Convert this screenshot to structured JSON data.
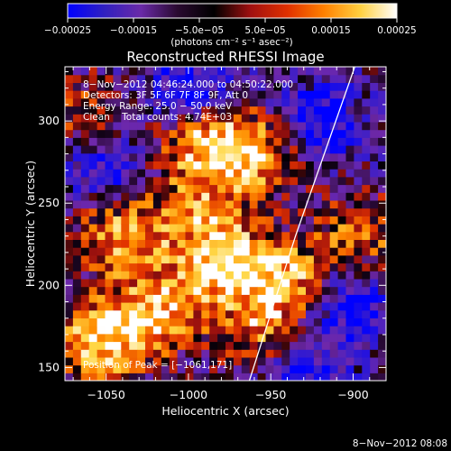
{
  "chart_data": {
    "type": "heatmap",
    "title": "Reconstructed RHESSI Image",
    "xlabel": "Heliocentric X (arcsec)",
    "ylabel": "Heliocentric Y (arcsec)",
    "xlim": [
      -1075,
      -880
    ],
    "ylim": [
      142,
      333
    ],
    "xticks": [
      -1050,
      -1000,
      -950,
      -900
    ],
    "xtick_labels": [
      "−1050",
      "−1000",
      "−950",
      "−900"
    ],
    "yticks": [
      150,
      200,
      250,
      300
    ],
    "ytick_labels": [
      "150",
      "200",
      "250",
      "300"
    ],
    "colorbar": {
      "min": -0.00025,
      "max": 0.00025,
      "tick_labels": [
        "−0.00025",
        "−0.00015",
        "−5.0e−05",
        "5.0e−05",
        "0.00015",
        "0.00025"
      ],
      "unit_label": "(photons cm⁻² s⁻¹ asec⁻²)",
      "colors": [
        "#0000ff",
        "#3020c0",
        "#6a2aa8",
        "#2a0a30",
        "#000000",
        "#a01010",
        "#e03000",
        "#ff8000",
        "#ffd040",
        "#ffffff"
      ]
    },
    "annotations": {
      "time_range": "8−Nov−2012 04:46:24.000 to 04:50:22.000",
      "detectors": "Detectors: 3F 5F 6F 7F 8F 9F, Att 0",
      "energy_range": "Energy Range: 25.0 − 50.0 keV",
      "clean": "Clean    Total counts: 4.74E+03",
      "peak_position": "Position of Peak = [−1061,171]",
      "plot_date": "8−Nov−2012 08:08"
    },
    "limb_line": {
      "x": [
        -963,
        -935,
        -899
      ],
      "y": [
        142,
        230,
        333
      ]
    },
    "grid_resolution": [
      40,
      40
    ],
    "blobs": [
      {
        "x": -990,
        "y": 290,
        "w": 0.9
      },
      {
        "x": -960,
        "y": 280,
        "w": 0.8
      },
      {
        "x": -1040,
        "y": 230,
        "w": 0.8
      },
      {
        "x": -980,
        "y": 215,
        "w": 1.0
      },
      {
        "x": -1020,
        "y": 185,
        "w": 0.9
      },
      {
        "x": -1055,
        "y": 165,
        "w": 1.0
      },
      {
        "x": -940,
        "y": 205,
        "w": 0.8
      },
      {
        "x": -955,
        "y": 175,
        "w": 0.7
      },
      {
        "x": -895,
        "y": 230,
        "w": 0.6
      },
      {
        "x": -1060,
        "y": 300,
        "w": 0.6
      },
      {
        "x": -995,
        "y": 250,
        "w": 0.6
      }
    ],
    "voids": [
      {
        "x": -1000,
        "y": 318,
        "w": 1.0
      },
      {
        "x": -1050,
        "y": 275,
        "w": 0.8
      },
      {
        "x": -920,
        "y": 300,
        "w": 0.9
      },
      {
        "x": -905,
        "y": 190,
        "w": 0.9
      },
      {
        "x": -930,
        "y": 150,
        "w": 0.7
      }
    ]
  }
}
